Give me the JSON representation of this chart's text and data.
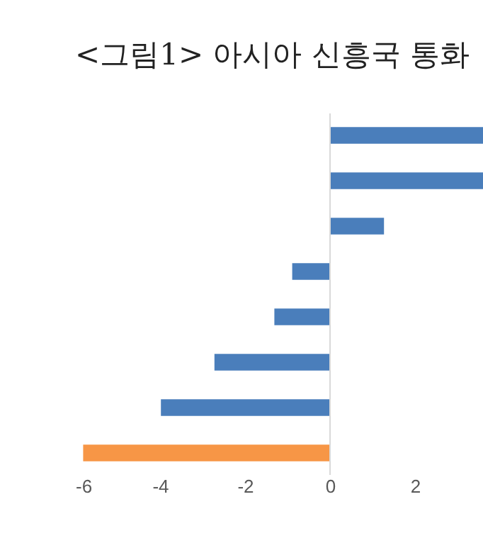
{
  "chart_data": {
    "type": "bar",
    "orientation": "horizontal",
    "title": "<그림1> 아시아 신흥국 통화",
    "categories": [
      null,
      null,
      null,
      null,
      null,
      null,
      null,
      null
    ],
    "values": [
      3.6,
      3.6,
      1.27,
      -0.89,
      -1.31,
      -2.72,
      -3.98,
      -5.81
    ],
    "colors": [
      "#4a7ebb",
      "#4a7ebb",
      "#4a7ebb",
      "#4a7ebb",
      "#4a7ebb",
      "#4a7ebb",
      "#4a7ebb",
      "#f79646"
    ],
    "xlim": [
      -6,
      3.6
    ],
    "xticks": [
      -6,
      -4,
      -2,
      0,
      2
    ],
    "tick_labels": "x",
    "ref_lines": [
      {
        "axis": "x",
        "value": 0,
        "color": "#d9d9d9"
      }
    ]
  }
}
